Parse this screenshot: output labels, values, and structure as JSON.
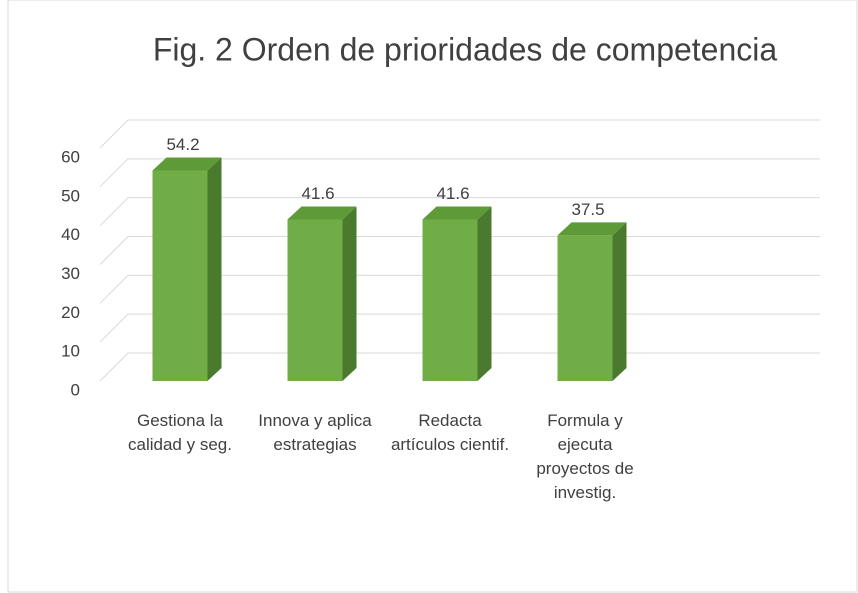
{
  "chart_data": {
    "type": "bar",
    "title": "Fig. 2 Orden de prioridades de competencia",
    "categories": [
      "Gestiona la calidad y seg.",
      "Innova y aplica estrategias",
      "Redacta artículos cientif.",
      "Formula y ejecuta proyectos de investig."
    ],
    "values": [
      54.2,
      41.6,
      41.6,
      37.5
    ],
    "color": "#70ad47",
    "ylim": [
      0,
      60
    ],
    "yticks": [
      0,
      10,
      20,
      30,
      40,
      50,
      60
    ],
    "grid": true
  }
}
